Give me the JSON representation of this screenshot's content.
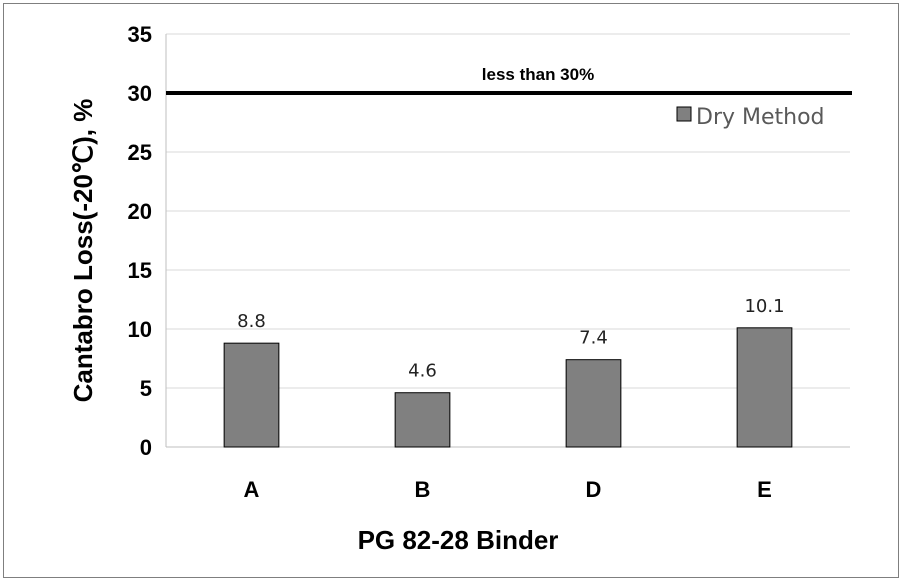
{
  "chart_data": {
    "type": "bar",
    "categories": [
      "A",
      "B",
      "D",
      "E"
    ],
    "series": [
      {
        "name": "Dry Method",
        "values": [
          8.8,
          4.6,
          7.4,
          10.1
        ],
        "color": "#808080"
      }
    ],
    "data_labels": [
      "8.8",
      "4.6",
      "7.4",
      "10.1"
    ],
    "xlabel": "PG 82-28 Binder",
    "ylabel": "Cantabro Loss(-20℃), %",
    "ylim": [
      0,
      35
    ],
    "yticks": [
      0,
      5,
      10,
      15,
      20,
      25,
      30,
      35
    ],
    "grid": true,
    "legend_position": "top-right",
    "reference_line": {
      "value": 30,
      "label": "less than 30%",
      "color": "#000000"
    }
  }
}
